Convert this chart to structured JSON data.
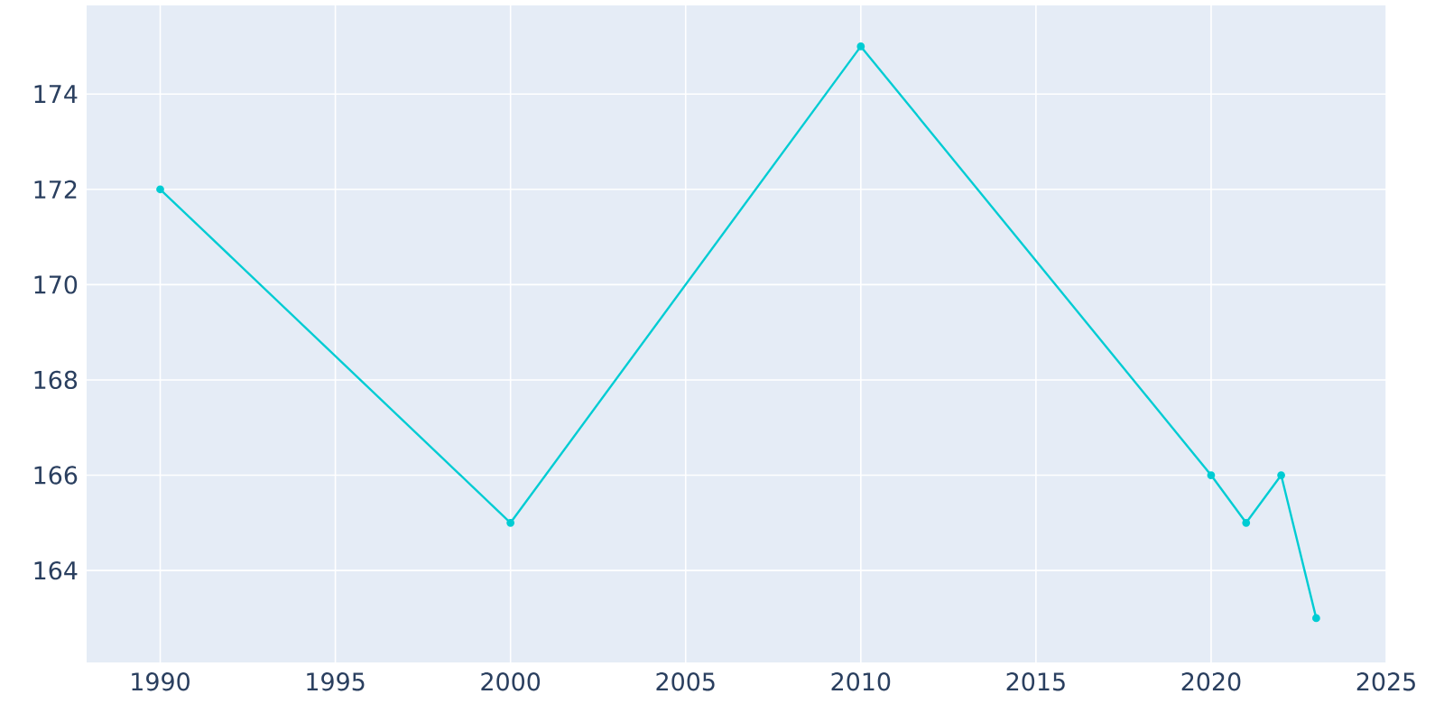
{
  "chart_data": {
    "type": "line",
    "x": [
      1990,
      2000,
      2010,
      2020,
      2021,
      2022,
      2023
    ],
    "series": [
      {
        "color": "#00ccd3",
        "values": [
          172,
          165,
          175,
          166,
          165,
          166,
          163
        ]
      }
    ],
    "xlim": [
      1987.9,
      2025
    ],
    "ylim": [
      162.07,
      175.86
    ],
    "xticks": [
      1990,
      1995,
      2000,
      2005,
      2010,
      2015,
      2020,
      2025
    ],
    "yticks": [
      164,
      166,
      168,
      170,
      172,
      174
    ],
    "grid": true,
    "marker": "circle",
    "line_style": "solid"
  }
}
